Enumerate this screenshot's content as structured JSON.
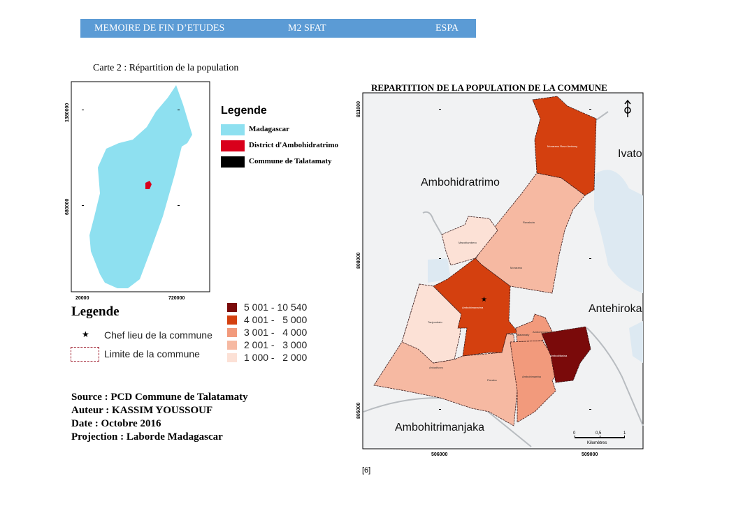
{
  "header": {
    "left": "MEMOIRE DE FIN D’ETUDES",
    "center": "M2 SFAT",
    "right": "ESPA",
    "color": "#5b9bd5"
  },
  "caption": "Carte 2 : Répartition de la population",
  "inset_map": {
    "y_ticks": [
      "1380000",
      "680000"
    ],
    "x_ticks": [
      "20000",
      "720000"
    ],
    "legend_title": "Legende",
    "legend": [
      {
        "label": "Madagascar",
        "color": "#8ee0f0"
      },
      {
        "label": "District d'Ambohidratrimo",
        "color": "#d9001b"
      },
      {
        "label": "Commune de Talatamaty",
        "color": "#000000"
      }
    ]
  },
  "main_legend": {
    "title": "Legende",
    "symbols": [
      {
        "icon": "star-icon",
        "label": "Chef lieu de la commune"
      },
      {
        "icon": "boundary-box-icon",
        "label": "Limite de la commune"
      }
    ],
    "classes": [
      {
        "label": "5 001 - 10 540",
        "color": "#7a0a0a"
      },
      {
        "label": "4 001 -   5 000",
        "color": "#d4400f"
      },
      {
        "label": "3 001 -   4 000",
        "color": "#f29a7c"
      },
      {
        "label": "2 001 -   3 000",
        "color": "#f6b9a2"
      },
      {
        "label": "1 000 -   2 000",
        "color": "#fce1d6"
      }
    ]
  },
  "credits": [
    "Source : PCD Commune de Talatamaty",
    "Auteur : KASSIM YOUSSOUF",
    "Date : Octobre 2016",
    "Projection : Laborde Madagascar"
  ],
  "main_map": {
    "title": "REPARTITION DE LA POPULATION DE LA COMMUNE",
    "y_ticks": [
      "811000",
      "808000",
      "805000"
    ],
    "x_ticks": [
      "506000",
      "509000"
    ],
    "neighbours": [
      "Ambohidratrimo",
      "Ivato",
      "Antehiroka",
      "Ambohitrimanjaka"
    ],
    "fokontany": [
      "Morarano Ravo Ambony",
      "Ravalada",
      "Mandriambero",
      "Morarano",
      "Ambohimanarina",
      "Tanjombato",
      "Talatamaty",
      "Ambohimarina",
      "Ankadivory",
      "Fiaraha",
      "Ambohimamba",
      "Ambodifasina"
    ],
    "scale": {
      "ticks": [
        "0",
        "0,5",
        "1"
      ],
      "unit": "Kilomètres"
    },
    "north_icon": "north-arrow-icon"
  },
  "page_number": "[6]"
}
